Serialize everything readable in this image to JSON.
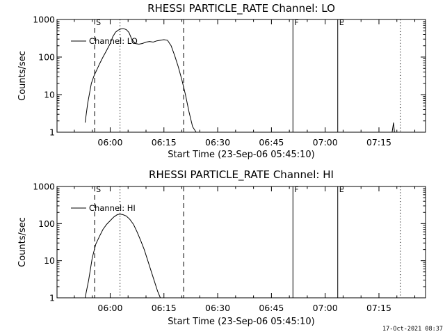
{
  "chart_data": [
    {
      "type": "line",
      "title": "RHESSI PARTICLE_RATE Channel: LO",
      "xlabel": "Start Time (23-Sep-06 05:45:10)",
      "ylabel": "Counts/sec",
      "yscale": "log",
      "ylim": [
        1,
        1000
      ],
      "y_ticks": [
        1,
        10,
        100,
        1000
      ],
      "y_ticklabels": [
        "1",
        "10",
        "100",
        "1000"
      ],
      "xlim": [
        "05:45:10",
        "07:28:00"
      ],
      "x_ticks": [
        "06:00",
        "06:15",
        "06:30",
        "06:45",
        "07:00",
        "07:15"
      ],
      "legend": {
        "label": "Channel: LO",
        "position": "top-left"
      },
      "series": [
        {
          "name": "Channel: LO",
          "x": [
            "05:53:00",
            "05:53:45",
            "05:54:45",
            "05:55:30",
            "05:56:15",
            "05:57:00",
            "05:58:00",
            "05:59:00",
            "06:00:00",
            "06:00:45",
            "06:01:30",
            "06:02:15",
            "06:03:00",
            "06:03:45",
            "06:04:30",
            "06:05:15",
            "06:06:00",
            "06:07:00",
            "06:08:00",
            "06:09:00",
            "06:10:00",
            "06:11:00",
            "06:12:00",
            "06:13:00",
            "06:14:00",
            "06:15:00",
            "06:16:00",
            "06:17:00",
            "06:18:00",
            "06:19:00",
            "06:20:00",
            "06:21:00",
            "06:22:00",
            "06:23:00",
            "06:24:00"
          ],
          "y": [
            1.8,
            6,
            20,
            32,
            45,
            65,
            100,
            150,
            230,
            350,
            460,
            520,
            560,
            570,
            540,
            450,
            300,
            230,
            220,
            230,
            250,
            260,
            250,
            270,
            280,
            290,
            280,
            200,
            110,
            55,
            25,
            10,
            3.5,
            1.4,
            1
          ]
        },
        {
          "name": "spike",
          "x": [
            "07:18:40",
            "07:19:05",
            "07:19:20"
          ],
          "y": [
            1,
            1.8,
            1
          ]
        }
      ],
      "markers": [
        {
          "label": "S",
          "time": "05:55:40",
          "style": "dashed"
        },
        {
          "label": "",
          "time": "06:02:45",
          "style": "dotted"
        },
        {
          "label": "",
          "time": "06:20:30",
          "style": "dashed"
        },
        {
          "label": "F",
          "time": "06:51:00",
          "style": "solid"
        },
        {
          "label": "E",
          "time": "07:03:30",
          "style": "solid"
        },
        {
          "label": "",
          "time": "07:21:00",
          "style": "dotted"
        }
      ]
    },
    {
      "type": "line",
      "title": "RHESSI PARTICLE_RATE Channel: HI",
      "xlabel": "Start Time (23-Sep-06 05:45:10)",
      "ylabel": "Counts/sec",
      "yscale": "log",
      "ylim": [
        1,
        1000
      ],
      "y_ticks": [
        1,
        10,
        100,
        1000
      ],
      "y_ticklabels": [
        "1",
        "10",
        "100",
        "1000"
      ],
      "xlim": [
        "05:45:10",
        "07:28:00"
      ],
      "x_ticks": [
        "06:00",
        "06:15",
        "06:30",
        "06:45",
        "07:00",
        "07:15"
      ],
      "legend": {
        "label": "Channel: HI",
        "position": "top-left"
      },
      "series": [
        {
          "name": "Channel: HI",
          "x": [
            "05:53:00",
            "05:54:00",
            "05:55:00",
            "05:56:00",
            "05:57:00",
            "05:58:00",
            "05:59:00",
            "06:00:00",
            "06:01:00",
            "06:02:00",
            "06:02:45",
            "06:03:30",
            "06:04:30",
            "06:05:30",
            "06:06:30",
            "06:07:30",
            "06:08:30",
            "06:09:30",
            "06:10:30",
            "06:11:30",
            "06:12:30",
            "06:13:15",
            "06:14:00"
          ],
          "y": [
            1,
            3,
            12,
            28,
            45,
            70,
            95,
            120,
            150,
            175,
            180,
            175,
            160,
            130,
            95,
            60,
            35,
            20,
            10,
            5,
            2.5,
            1.5,
            1
          ]
        }
      ],
      "markers": [
        {
          "label": "S",
          "time": "05:55:40",
          "style": "dashed"
        },
        {
          "label": "",
          "time": "06:02:45",
          "style": "dotted"
        },
        {
          "label": "",
          "time": "06:20:30",
          "style": "dashed"
        },
        {
          "label": "F",
          "time": "06:51:00",
          "style": "solid"
        },
        {
          "label": "E",
          "time": "07:03:30",
          "style": "solid"
        },
        {
          "label": "",
          "time": "07:21:00",
          "style": "dotted"
        }
      ]
    }
  ],
  "footer": {
    "timestamp": "17-Oct-2021 08:37"
  }
}
